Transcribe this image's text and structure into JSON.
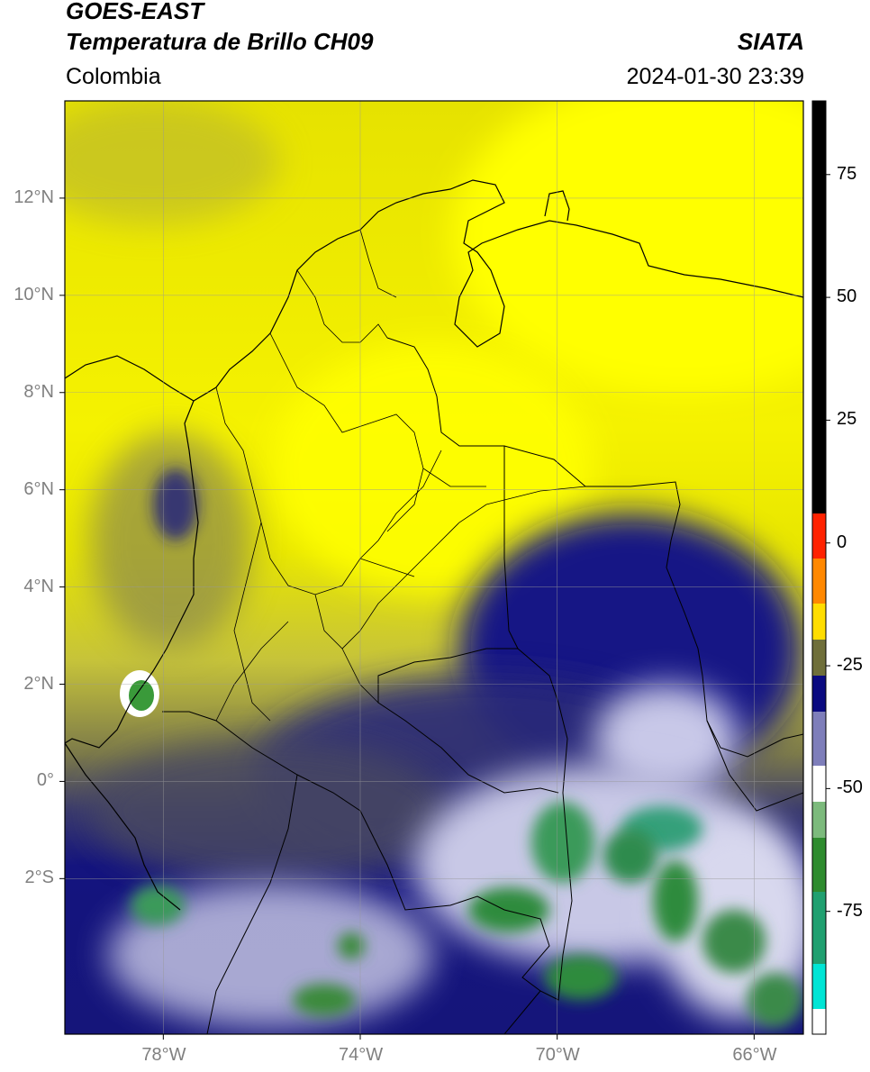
{
  "header": {
    "satellite": "GOES-EAST",
    "product": "Temperatura de Brillo CH09",
    "region": "Colombia",
    "agency": "SIATA",
    "datetime": "2024-01-30 23:39"
  },
  "map": {
    "lat_ticks": [
      {
        "value": 12,
        "label": "12°N"
      },
      {
        "value": 10,
        "label": "10°N"
      },
      {
        "value": 8,
        "label": "8°N"
      },
      {
        "value": 6,
        "label": "6°N"
      },
      {
        "value": 4,
        "label": "4°N"
      },
      {
        "value": 2,
        "label": "2°N"
      },
      {
        "value": 0,
        "label": "0°"
      },
      {
        "value": -2,
        "label": "2°S"
      }
    ],
    "lon_ticks": [
      {
        "value": -78,
        "label": "78°W"
      },
      {
        "value": -74,
        "label": "74°W"
      },
      {
        "value": -70,
        "label": "70°W"
      },
      {
        "value": -66,
        "label": "66°W"
      }
    ],
    "extent": {
      "lon_min": -80,
      "lon_max": -65,
      "lat_min": -5.2,
      "lat_max": 14
    },
    "gridlines": true
  },
  "colorbar": {
    "ticks": [
      {
        "value": 75,
        "label": "75"
      },
      {
        "value": 50,
        "label": "50"
      },
      {
        "value": 25,
        "label": "25"
      },
      {
        "value": 0,
        "label": "0"
      },
      {
        "value": -25,
        "label": "-25"
      },
      {
        "value": -50,
        "label": "-50"
      },
      {
        "value": -75,
        "label": "-75"
      }
    ],
    "range": [
      -100,
      90
    ],
    "colors": {
      "warm": "#000000",
      "hot": "#ff2200",
      "mild": "#ff9900",
      "dry": "#ffff00",
      "olive": "#6f6f3a",
      "cold": "#0a0a80",
      "very_cold": "#ffffff",
      "green": "#2e8b2e",
      "cyan": "#00e5d5"
    }
  }
}
